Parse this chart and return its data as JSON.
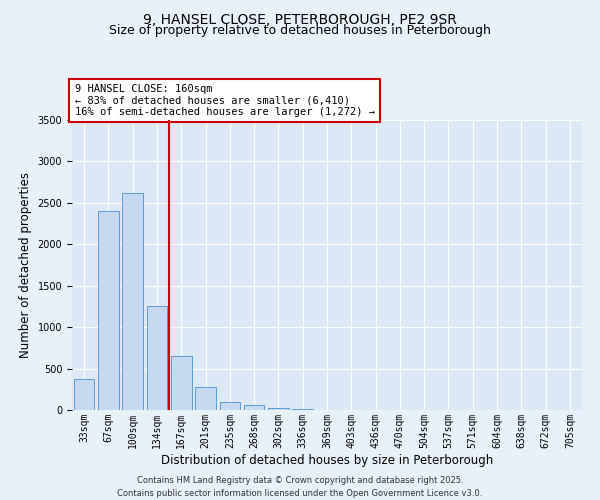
{
  "title_line1": "9, HANSEL CLOSE, PETERBOROUGH, PE2 9SR",
  "title_line2": "Size of property relative to detached houses in Peterborough",
  "xlabel": "Distribution of detached houses by size in Peterborough",
  "ylabel": "Number of detached properties",
  "bar_labels": [
    "33sqm",
    "67sqm",
    "100sqm",
    "134sqm",
    "167sqm",
    "201sqm",
    "235sqm",
    "268sqm",
    "302sqm",
    "336sqm",
    "369sqm",
    "403sqm",
    "436sqm",
    "470sqm",
    "504sqm",
    "537sqm",
    "571sqm",
    "604sqm",
    "638sqm",
    "672sqm",
    "705sqm"
  ],
  "bar_values": [
    380,
    2400,
    2620,
    1250,
    650,
    280,
    100,
    55,
    20,
    10,
    0,
    0,
    0,
    0,
    0,
    0,
    0,
    0,
    0,
    0,
    0
  ],
  "bar_color": "#c6d9f0",
  "bar_edge_color": "#5b9bd5",
  "red_line_index": 4,
  "annotation_text": "9 HANSEL CLOSE: 160sqm\n← 83% of detached houses are smaller (6,410)\n16% of semi-detached houses are larger (1,272) →",
  "annotation_box_color": "#ffffff",
  "annotation_box_edge_color": "#cc0000",
  "ylim": [
    0,
    3500
  ],
  "yticks": [
    0,
    500,
    1000,
    1500,
    2000,
    2500,
    3000,
    3500
  ],
  "background_color": "#e8f0f8",
  "plot_bg_color": "#dce8f5",
  "grid_color": "#ffffff",
  "footer_line1": "Contains HM Land Registry data © Crown copyright and database right 2025.",
  "footer_line2": "Contains public sector information licensed under the Open Government Licence v3.0.",
  "title_fontsize": 10,
  "subtitle_fontsize": 9,
  "axis_label_fontsize": 8.5,
  "tick_fontsize": 7,
  "annotation_fontsize": 7.5,
  "footer_fontsize": 6
}
